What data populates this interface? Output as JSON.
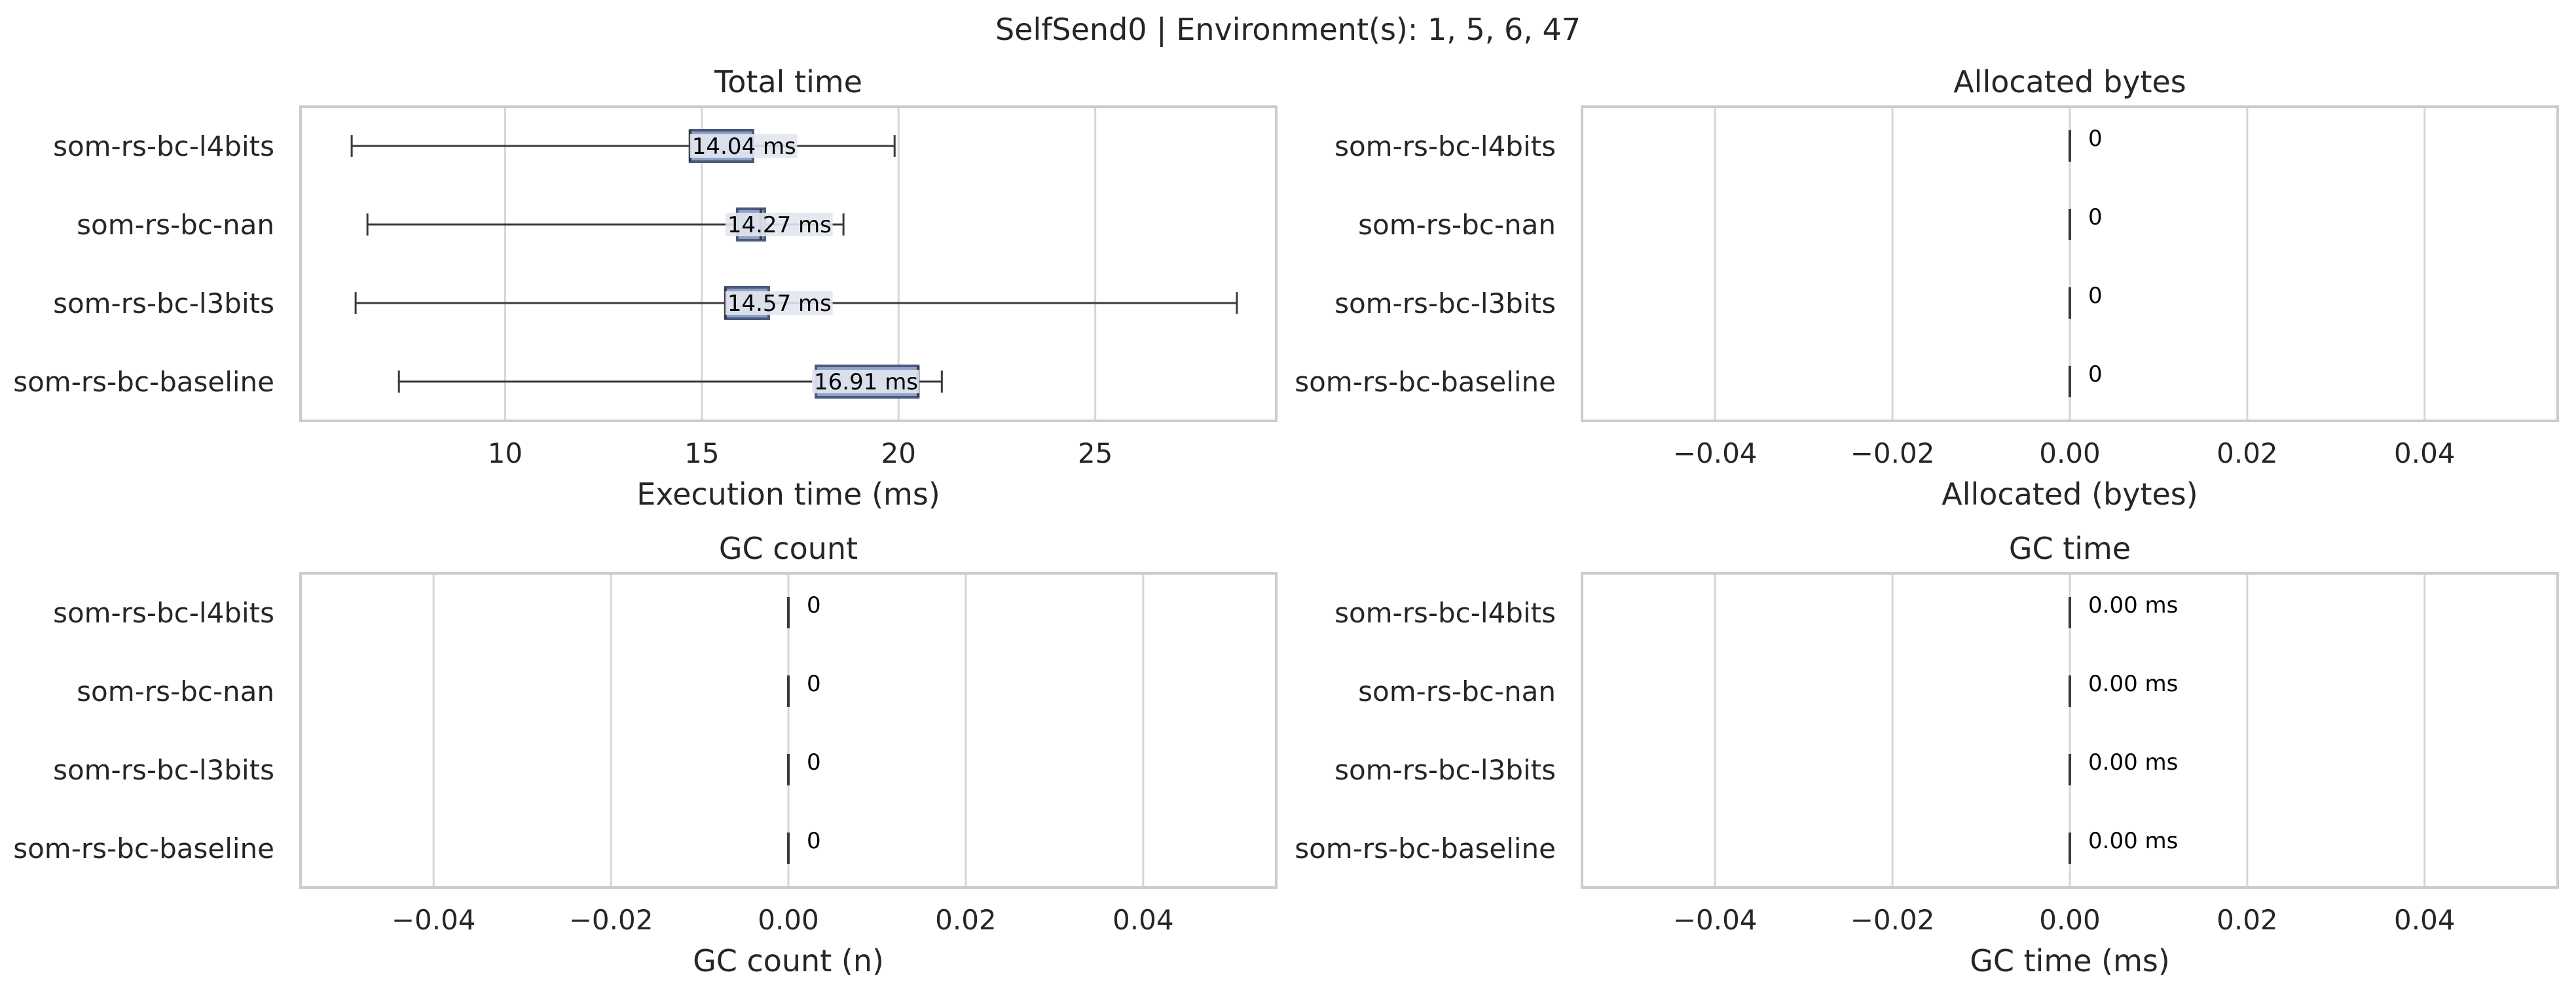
{
  "figure_title": "SelfSend0 | Environment(s): 1, 5, 6, 47",
  "colors": {
    "box_fill": "#8fa1c7",
    "box_edge": "#4a5a7f",
    "label_bg": "#e2e6f0",
    "whisker": "#3a3a3a",
    "grid": "#d6d6d6",
    "frame": "#cccccc",
    "text": "#262626"
  },
  "chart_data": [
    {
      "type": "box",
      "orientation": "horizontal",
      "title": "Total time",
      "xlabel": "Execution time (ms)",
      "categories": [
        "som-rs-bc-l4bits",
        "som-rs-bc-nan",
        "som-rs-bc-l3bits",
        "som-rs-bc-baseline"
      ],
      "xlim": [
        4.8,
        29.6
      ],
      "xticks": [
        10,
        15,
        20,
        25
      ],
      "xtick_labels": [
        "10",
        "15",
        "20",
        "25"
      ],
      "grid": true,
      "boxes": [
        {
          "min": 6.1,
          "q1": 14.7,
          "median": 14.7,
          "q3": 16.3,
          "max": 19.9
        },
        {
          "min": 6.5,
          "q1": 15.9,
          "median": 16.5,
          "q3": 16.6,
          "max": 18.6
        },
        {
          "min": 6.2,
          "q1": 15.6,
          "median": 15.6,
          "q3": 16.7,
          "max": 28.6
        },
        {
          "min": 7.3,
          "q1": 17.9,
          "median": 20.5,
          "q3": 20.5,
          "max": 21.1
        }
      ],
      "value_labels": [
        "14.04 ms",
        "14.27 ms",
        "14.57 ms",
        "16.91 ms"
      ],
      "label_x": [
        14.7,
        15.6,
        15.6,
        17.8
      ]
    },
    {
      "type": "box",
      "orientation": "horizontal",
      "title": "Allocated bytes",
      "xlabel": "Allocated (bytes)",
      "categories": [
        "som-rs-bc-l4bits",
        "som-rs-bc-nan",
        "som-rs-bc-l3bits",
        "som-rs-bc-baseline"
      ],
      "xlim": [
        -0.055,
        0.055
      ],
      "xticks": [
        -0.04,
        -0.02,
        0.0,
        0.02,
        0.04
      ],
      "xtick_labels": [
        "−0.04",
        "−0.02",
        "0.00",
        "0.02",
        "0.04"
      ],
      "grid": true,
      "boxes": [
        {
          "min": 0,
          "q1": 0,
          "median": 0,
          "q3": 0,
          "max": 0
        },
        {
          "min": 0,
          "q1": 0,
          "median": 0,
          "q3": 0,
          "max": 0
        },
        {
          "min": 0,
          "q1": 0,
          "median": 0,
          "q3": 0,
          "max": 0
        },
        {
          "min": 0,
          "q1": 0,
          "median": 0,
          "q3": 0,
          "max": 0
        }
      ],
      "value_labels": [
        "0",
        "0",
        "0",
        "0"
      ],
      "label_x": [
        0,
        0,
        0,
        0
      ]
    },
    {
      "type": "box",
      "orientation": "horizontal",
      "title": "GC count",
      "xlabel": "GC count (n)",
      "categories": [
        "som-rs-bc-l4bits",
        "som-rs-bc-nan",
        "som-rs-bc-l3bits",
        "som-rs-bc-baseline"
      ],
      "xlim": [
        -0.055,
        0.055
      ],
      "xticks": [
        -0.04,
        -0.02,
        0.0,
        0.02,
        0.04
      ],
      "xtick_labels": [
        "−0.04",
        "−0.02",
        "0.00",
        "0.02",
        "0.04"
      ],
      "grid": true,
      "boxes": [
        {
          "min": 0,
          "q1": 0,
          "median": 0,
          "q3": 0,
          "max": 0
        },
        {
          "min": 0,
          "q1": 0,
          "median": 0,
          "q3": 0,
          "max": 0
        },
        {
          "min": 0,
          "q1": 0,
          "median": 0,
          "q3": 0,
          "max": 0
        },
        {
          "min": 0,
          "q1": 0,
          "median": 0,
          "q3": 0,
          "max": 0
        }
      ],
      "value_labels": [
        "0",
        "0",
        "0",
        "0"
      ],
      "label_x": [
        0,
        0,
        0,
        0
      ]
    },
    {
      "type": "box",
      "orientation": "horizontal",
      "title": "GC time",
      "xlabel": "GC time (ms)",
      "categories": [
        "som-rs-bc-l4bits",
        "som-rs-bc-nan",
        "som-rs-bc-l3bits",
        "som-rs-bc-baseline"
      ],
      "xlim": [
        -0.055,
        0.055
      ],
      "xticks": [
        -0.04,
        -0.02,
        0.0,
        0.02,
        0.04
      ],
      "xtick_labels": [
        "−0.04",
        "−0.02",
        "0.00",
        "0.02",
        "0.04"
      ],
      "grid": true,
      "boxes": [
        {
          "min": 0,
          "q1": 0,
          "median": 0,
          "q3": 0,
          "max": 0
        },
        {
          "min": 0,
          "q1": 0,
          "median": 0,
          "q3": 0,
          "max": 0
        },
        {
          "min": 0,
          "q1": 0,
          "median": 0,
          "q3": 0,
          "max": 0
        },
        {
          "min": 0,
          "q1": 0,
          "median": 0,
          "q3": 0,
          "max": 0
        }
      ],
      "value_labels": [
        "0.00 ms",
        "0.00 ms",
        "0.00 ms",
        "0.00 ms"
      ],
      "label_x": [
        0,
        0,
        0,
        0
      ]
    }
  ]
}
